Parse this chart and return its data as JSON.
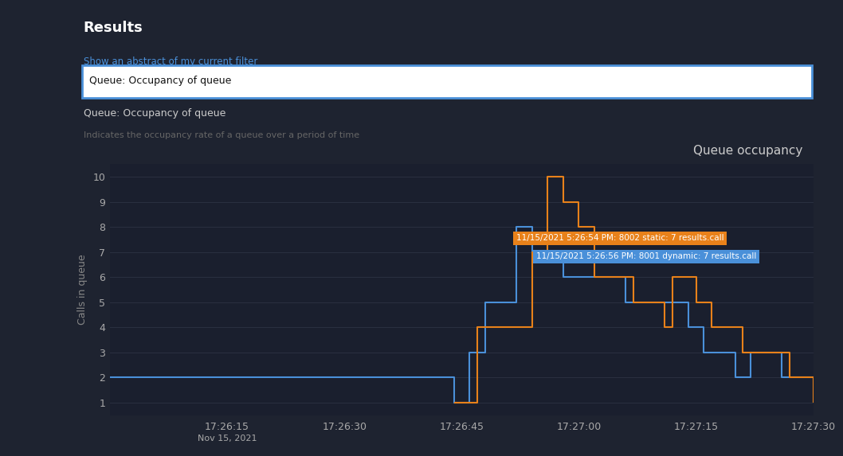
{
  "bg_color": "#1e2330",
  "header_bg": "#2d3446",
  "sidebar_bg": "#252c3a",
  "plot_bg": "#1a1f2e",
  "title": "Queue occupancy",
  "ylabel": "Calls in queue",
  "title_color": "#cccccc",
  "axis_color": "#888888",
  "tick_color": "#aaaaaa",
  "grid_color": "#2a3040",
  "orange_color": "#e8811a",
  "blue_color": "#4a90d9",
  "tooltip1_text": "11/15/2021 5:26:54 PM: 8002 static: 7 results.call",
  "tooltip2_text": "11/15/2021 5:26:56 PM: 8001 dynamic: 7 results.call",
  "tooltip1_bg": "#e8811a",
  "tooltip2_bg": "#4a90d9",
  "results_text": "Results",
  "filter_link": "Show an abstract of my current filter",
  "search_text": "Queue: Occupancy of queue",
  "desc_title": "Queue: Occupancy of queue",
  "desc_body": "Indicates the occupancy rate of a queue over a period of time",
  "xtick_labels": [
    "17:26:15",
    "17:26:30",
    "17:26:45",
    "17:27:00",
    "17:27:15",
    "17:27:30"
  ],
  "xtick_label2": "Nov 15, 2021",
  "yticks": [
    1,
    2,
    3,
    4,
    5,
    6,
    7,
    8,
    9,
    10
  ]
}
